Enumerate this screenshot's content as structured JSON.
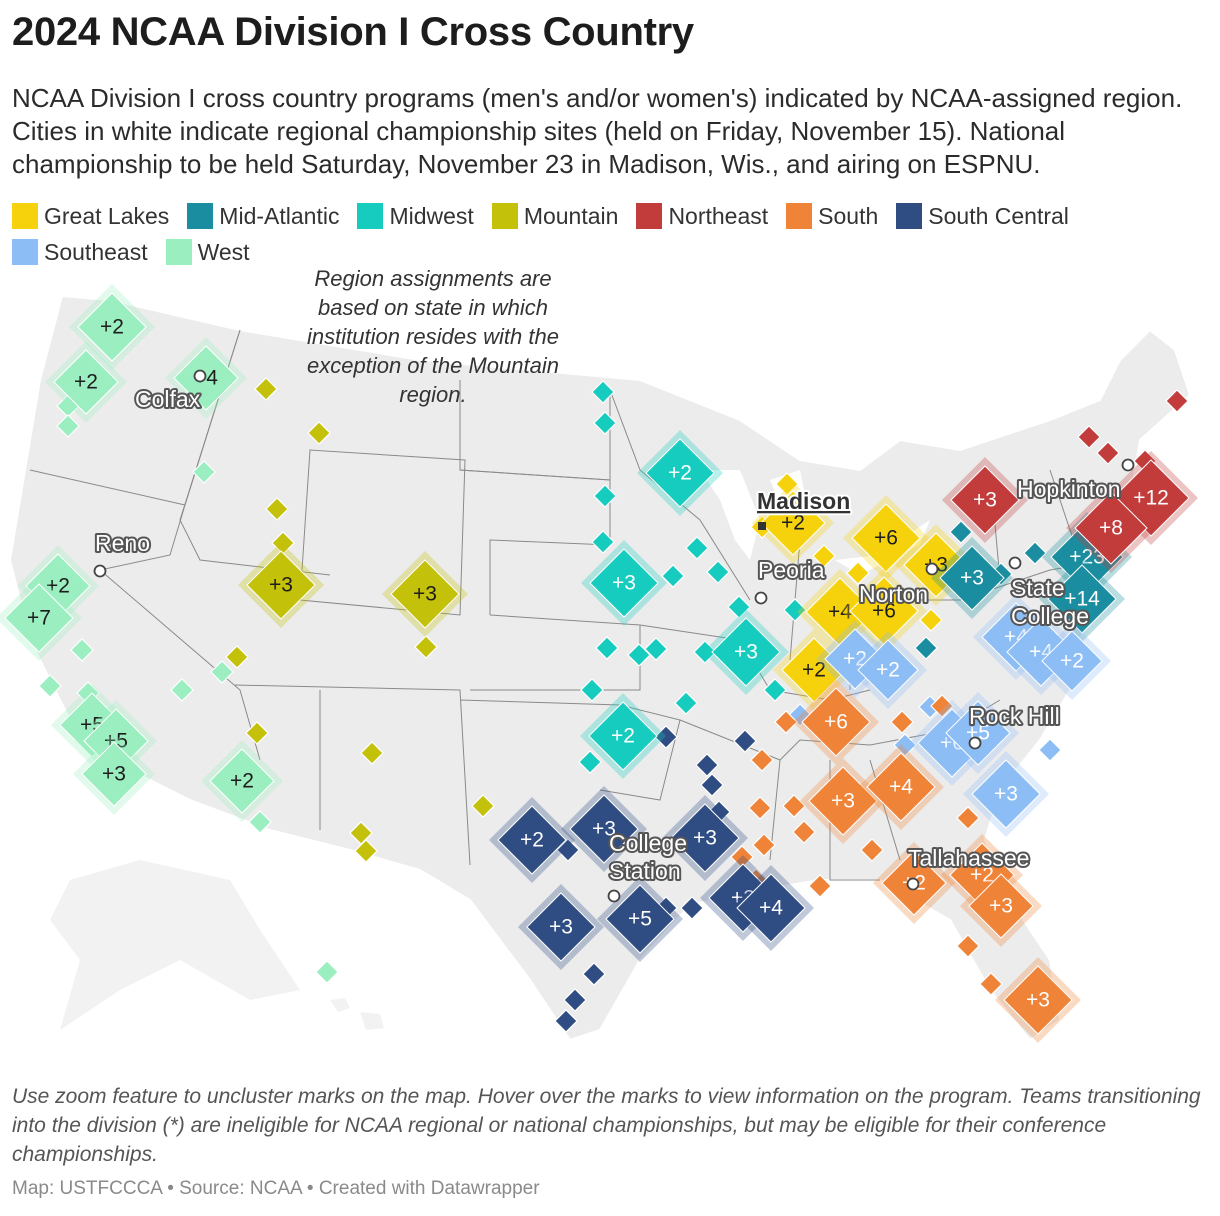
{
  "title": "2024 NCAA Division I Cross Country",
  "subtitle": "NCAA Division I cross country programs (men's and/or women's) indicated by NCAA-assigned region. Cities in white indicate regional championship sites (held on Friday, November 15). National championship to be held Saturday, November 23 in Madison, Wis., and airing on ESPNU.",
  "legend": [
    {
      "key": "great-lakes",
      "label": "Great Lakes",
      "color": "#f5d20c"
    },
    {
      "key": "mid-atlantic",
      "label": "Mid-Atlantic",
      "color": "#1a8ea0"
    },
    {
      "key": "midwest",
      "label": "Midwest",
      "color": "#16ccbe"
    },
    {
      "key": "mountain",
      "label": "Mountain",
      "color": "#c4c10b"
    },
    {
      "key": "northeast",
      "label": "Northeast",
      "color": "#c23c3c"
    },
    {
      "key": "south",
      "label": "South",
      "color": "#ef8337"
    },
    {
      "key": "south-central",
      "label": "South Central",
      "color": "#2f4d82"
    },
    {
      "key": "southeast",
      "label": "Southeast",
      "color": "#8dbdf5"
    },
    {
      "key": "west",
      "label": "West",
      "color": "#9beec0"
    }
  ],
  "annotation": [
    "Region assignments are",
    "based on state in which",
    "institution resides with the",
    "exception of the Mountain",
    "region."
  ],
  "cities": [
    {
      "name": "Colfax",
      "host": false
    },
    {
      "name": "Reno",
      "host": false
    },
    {
      "name": "Madison",
      "host": true
    },
    {
      "name": "Peoria",
      "host": false
    },
    {
      "name": "Norton",
      "host": false
    },
    {
      "name": "Hopkinton",
      "host": false
    },
    {
      "name": "State",
      "host": false
    },
    {
      "name": "College",
      "host": false
    },
    {
      "name": "Rock Hill",
      "host": false
    },
    {
      "name": "College",
      "host": false
    },
    {
      "name": "Station",
      "host": false
    },
    {
      "name": "Tallahassee",
      "host": false
    }
  ],
  "clusters": [
    {
      "region": "west",
      "label": "+2"
    },
    {
      "region": "west",
      "label": "+2"
    },
    {
      "region": "west",
      "label": "+4"
    },
    {
      "region": "west",
      "label": "+2"
    },
    {
      "region": "west",
      "label": "+7"
    },
    {
      "region": "west",
      "label": "+5"
    },
    {
      "region": "west",
      "label": "+5"
    },
    {
      "region": "west",
      "label": "+3"
    },
    {
      "region": "west",
      "label": "+2"
    },
    {
      "region": "mountain",
      "label": "+3"
    },
    {
      "region": "mountain",
      "label": "+3"
    },
    {
      "region": "midwest",
      "label": "+2"
    },
    {
      "region": "midwest",
      "label": "+3"
    },
    {
      "region": "midwest",
      "label": "+3"
    },
    {
      "region": "midwest",
      "label": "+2"
    },
    {
      "region": "great-lakes",
      "label": "+2"
    },
    {
      "region": "great-lakes",
      "label": "+6"
    },
    {
      "region": "great-lakes",
      "label": "+3"
    },
    {
      "region": "great-lakes",
      "label": "+4"
    },
    {
      "region": "great-lakes",
      "label": "+6"
    },
    {
      "region": "great-lakes",
      "label": "+2"
    },
    {
      "region": "mid-atlantic",
      "label": "+3"
    },
    {
      "region": "mid-atlantic",
      "label": "+23"
    },
    {
      "region": "mid-atlantic",
      "label": "+14"
    },
    {
      "region": "northeast",
      "label": "+3"
    },
    {
      "region": "northeast",
      "label": "+12"
    },
    {
      "region": "northeast",
      "label": "+8"
    },
    {
      "region": "southeast",
      "label": "+2"
    },
    {
      "region": "southeast",
      "label": "+2"
    },
    {
      "region": "southeast",
      "label": "+4"
    },
    {
      "region": "southeast",
      "label": "+4"
    },
    {
      "region": "southeast",
      "label": "+2"
    },
    {
      "region": "southeast",
      "label": "+6"
    },
    {
      "region": "southeast",
      "label": "+5"
    },
    {
      "region": "southeast",
      "label": "+3"
    },
    {
      "region": "south",
      "label": "+6"
    },
    {
      "region": "south",
      "label": "+3"
    },
    {
      "region": "south",
      "label": "+4"
    },
    {
      "region": "south",
      "label": "+2"
    },
    {
      "region": "south",
      "label": "+2"
    },
    {
      "region": "south",
      "label": "+3"
    },
    {
      "region": "south",
      "label": "+3"
    },
    {
      "region": "south-central",
      "label": "+2"
    },
    {
      "region": "south-central",
      "label": "+3"
    },
    {
      "region": "south-central",
      "label": "+3"
    },
    {
      "region": "south-central",
      "label": "+3"
    },
    {
      "region": "south-central",
      "label": "+5"
    },
    {
      "region": "south-central",
      "label": "+3"
    },
    {
      "region": "south-central",
      "label": "+4"
    }
  ],
  "note": "Use zoom feature to uncluster marks on the map. Hover over the marks to view information on the program. Teams transitioning into the division (*) are ineligible for NCAA regional or national championships, but may be eligible for their conference championships.",
  "credit": "Map: USTFCCCA • Source: NCAA • Created with Datawrapper"
}
